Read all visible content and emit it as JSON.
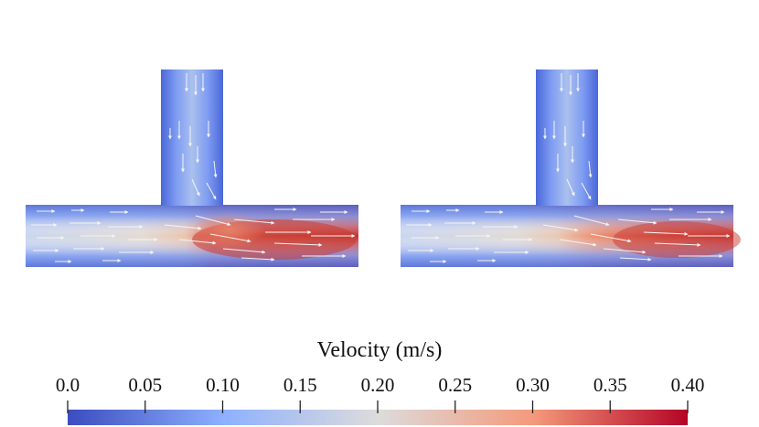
{
  "colorbar": {
    "title": "Velocity (m/s)",
    "ticks": [
      "0.0",
      "0.05",
      "0.10",
      "0.15",
      "0.20",
      "0.25",
      "0.30",
      "0.35",
      "0.40"
    ],
    "colors": {
      "low": "#3b4cc0",
      "mid_low": "#8db0fe",
      "mid": "#dddcdc",
      "mid_high": "#f49a7b",
      "high": "#b40426"
    }
  },
  "panels": [
    {
      "name": "left-tjunction-panel"
    },
    {
      "name": "right-tjunction-panel"
    }
  ]
}
